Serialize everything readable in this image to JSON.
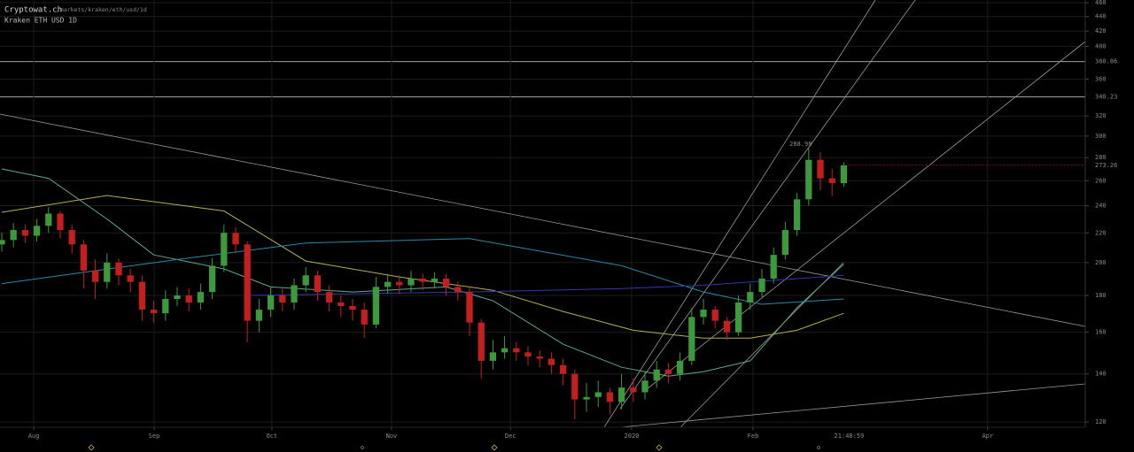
{
  "header": {
    "site": "Cryptowat.ch",
    "path": "/markets/kraken/eth/usd/1d",
    "market": "Kraken ETH USD 1D"
  },
  "chart_data": {
    "type": "candlestick",
    "x": [
      0,
      1,
      2,
      3,
      4,
      5,
      6,
      7,
      8,
      9,
      10,
      11,
      12,
      13,
      14,
      15,
      16,
      17,
      18,
      19,
      20,
      21,
      22,
      23,
      24,
      25,
      26,
      27,
      28,
      29,
      30,
      31,
      32,
      33,
      34,
      35,
      36,
      37,
      38,
      39,
      40,
      41,
      42,
      43,
      44,
      45,
      46,
      47,
      48,
      49,
      50,
      51,
      52,
      53,
      54,
      55,
      56,
      57,
      58,
      59,
      60,
      61,
      62,
      63,
      64,
      65,
      66,
      67,
      68,
      69,
      70,
      71,
      72
    ],
    "open": [
      212,
      215,
      222,
      218,
      225,
      234,
      222,
      212,
      195,
      188,
      200,
      192,
      188,
      172,
      170,
      178,
      180,
      176,
      182,
      198,
      220,
      212,
      166,
      172,
      180,
      176,
      186,
      192,
      182,
      176,
      174,
      172,
      164,
      185,
      188,
      186,
      190,
      188,
      190,
      185,
      182,
      165,
      146,
      150,
      152,
      150,
      148,
      147,
      144,
      140,
      129,
      130,
      132,
      128,
      134,
      132,
      137,
      142,
      140,
      146,
      168,
      172,
      166,
      160,
      176,
      182,
      190,
      205,
      222,
      245,
      278,
      262,
      258
    ],
    "high": [
      220,
      227,
      226,
      230,
      239,
      236,
      226,
      215,
      202,
      206,
      203,
      196,
      192,
      177,
      183,
      185,
      184,
      187,
      203,
      226,
      224,
      214,
      178,
      185,
      184,
      190,
      197,
      195,
      186,
      180,
      178,
      176,
      191,
      193,
      192,
      195,
      193,
      194,
      193,
      188,
      185,
      167,
      156,
      158,
      155,
      153,
      151,
      150,
      147,
      142,
      136,
      137,
      134,
      140,
      138,
      141,
      146,
      145,
      150,
      173,
      178,
      174,
      168,
      180,
      187,
      196,
      210,
      228,
      250,
      288.98,
      285,
      270,
      276
    ],
    "low": [
      207,
      210,
      213,
      214,
      220,
      216,
      206,
      184,
      178,
      184,
      186,
      182,
      166,
      165,
      166,
      174,
      171,
      172,
      178,
      194,
      206,
      155,
      160,
      168,
      171,
      172,
      182,
      177,
      171,
      168,
      166,
      157,
      162,
      181,
      181,
      182,
      183,
      184,
      180,
      177,
      158,
      138,
      142,
      147,
      146,
      144,
      143,
      140,
      135,
      121,
      124,
      126,
      123,
      125,
      128,
      129,
      134,
      136,
      137,
      144,
      164,
      162,
      156,
      158,
      172,
      179,
      187,
      202,
      218,
      240,
      252,
      248,
      255
    ],
    "close": [
      215,
      222,
      218,
      225,
      234,
      222,
      212,
      195,
      188,
      200,
      192,
      188,
      172,
      170,
      178,
      180,
      176,
      182,
      198,
      220,
      212,
      166,
      172,
      180,
      176,
      186,
      192,
      182,
      176,
      174,
      172,
      164,
      185,
      188,
      186,
      190,
      188,
      190,
      185,
      182,
      165,
      146,
      150,
      152,
      150,
      148,
      147,
      144,
      140,
      129,
      130,
      132,
      128,
      134,
      132,
      137,
      142,
      140,
      146,
      168,
      172,
      166,
      160,
      176,
      182,
      190,
      205,
      222,
      245,
      278,
      262,
      258,
      273.26
    ],
    "up_color": "#3c9a3c",
    "down_color": "#c41f1f",
    "log_scale": true,
    "grid": true,
    "ylim": [
      118,
      464
    ],
    "yticks": [
      120,
      140,
      160,
      180,
      200,
      220,
      240,
      260,
      280,
      300,
      320,
      360,
      400,
      420,
      440,
      460
    ],
    "price_lines": [
      380.86,
      340.23
    ],
    "xlim": [
      -0.15,
      92.65
    ],
    "xticks": [
      {
        "value": 2.73,
        "label": "Aug"
      },
      {
        "value": 13.03,
        "label": "Sep"
      },
      {
        "value": 23.1,
        "label": "Oct"
      },
      {
        "value": 33.33,
        "label": "Nov"
      },
      {
        "value": 43.5,
        "label": "Dec"
      },
      {
        "value": 53.86,
        "label": "2020"
      },
      {
        "value": 64.24,
        "label": "Feb"
      },
      {
        "value": 84.3,
        "label": "Apr"
      }
    ],
    "time_label": "21:48:59",
    "overlays": [
      {
        "color": "#b5ad55",
        "x": [
          0,
          9,
          19,
          26,
          34,
          42,
          48,
          54,
          60,
          64,
          68,
          72
        ],
        "values": [
          235,
          248,
          236,
          201,
          191,
          183,
          171,
          161,
          157,
          157,
          161,
          170
        ]
      },
      {
        "color": "#5fa883",
        "x": [
          0,
          4,
          9,
          13,
          19,
          23,
          30,
          38,
          42,
          48,
          53,
          57,
          60,
          64,
          68,
          72
        ],
        "values": [
          270,
          262,
          230,
          205,
          196,
          185,
          182,
          185,
          177,
          154,
          143,
          139,
          141,
          146,
          173,
          199
        ]
      },
      {
        "color": "#2b8aa3",
        "x": [
          0,
          15,
          26,
          40,
          53,
          60,
          65,
          72
        ],
        "values": [
          187,
          202,
          213,
          216,
          198,
          182,
          175,
          178
        ]
      },
      {
        "color": "#3636a8",
        "x": [
          21,
          40,
          53,
          60,
          72
        ],
        "values": [
          180,
          182,
          184,
          186,
          192
        ]
      }
    ]
  }
}
